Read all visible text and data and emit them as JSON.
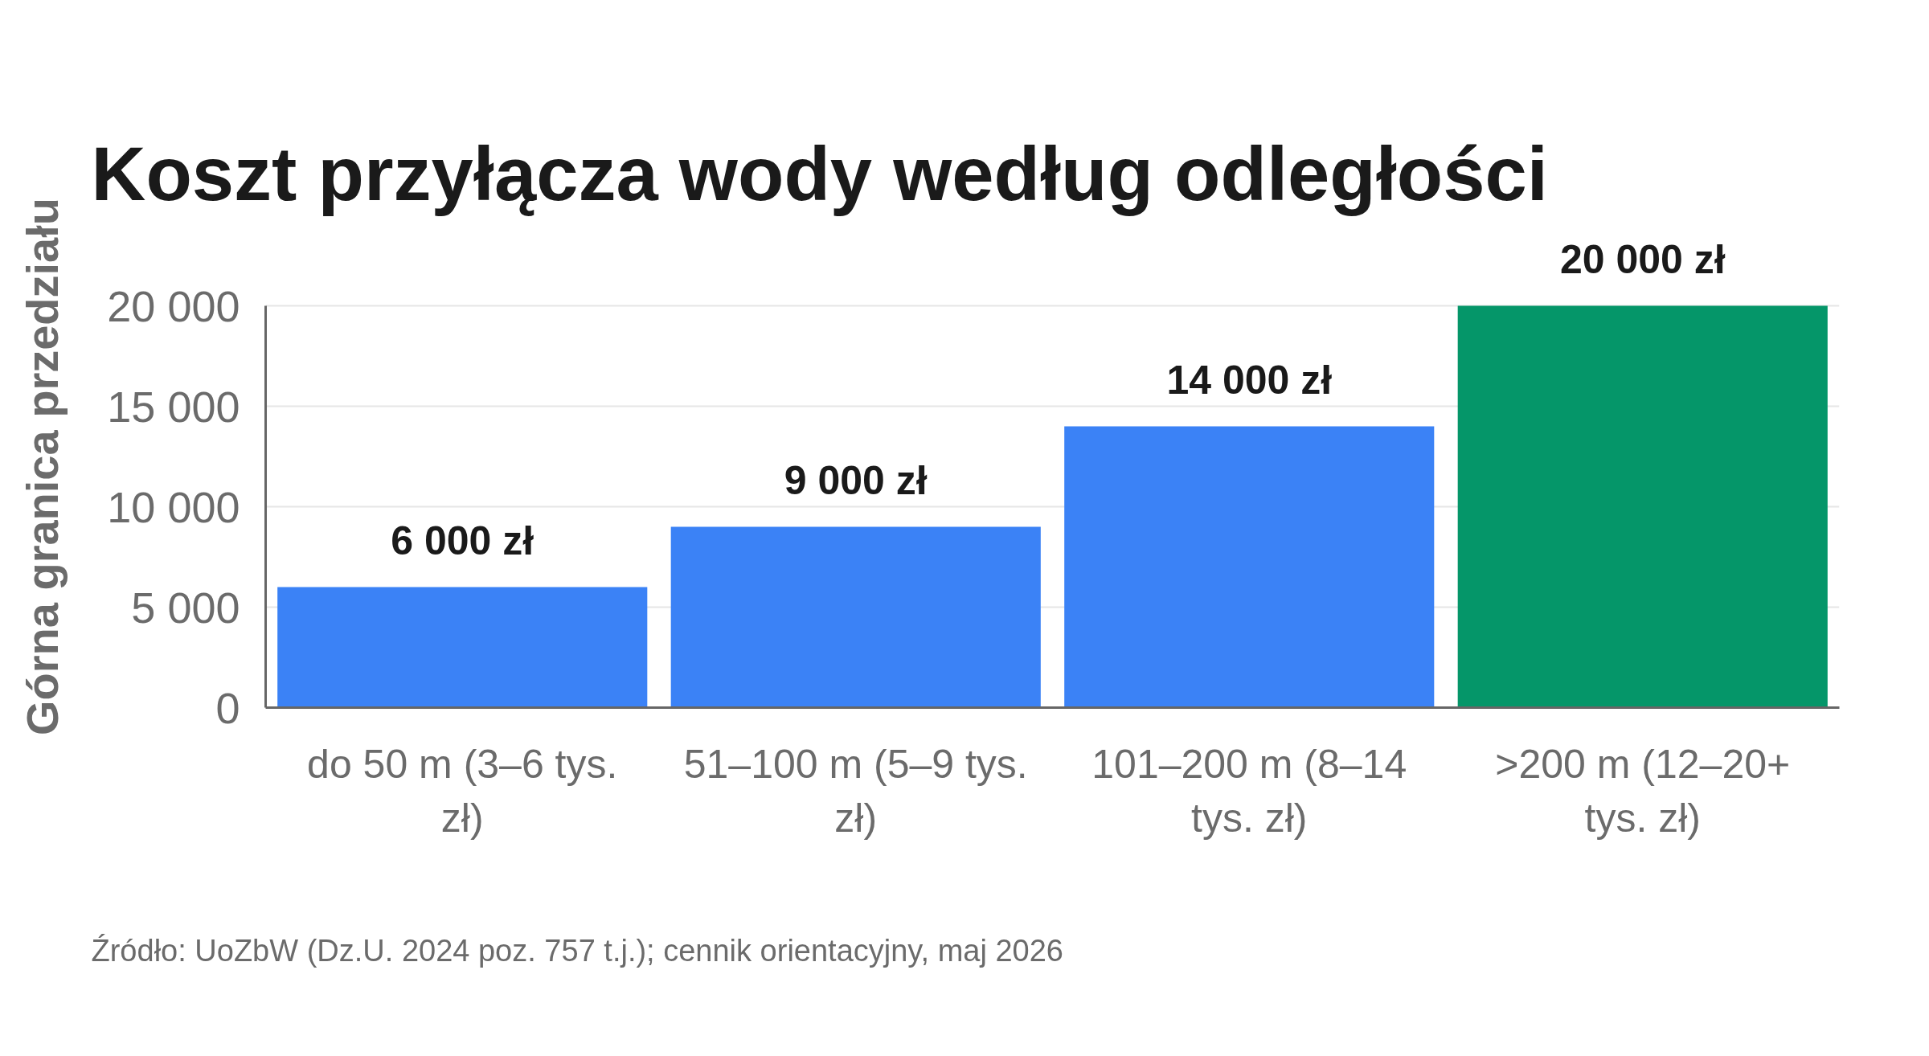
{
  "chart_data": {
    "type": "bar",
    "title": "Koszt przyłącza wody według odległości",
    "ylabel": "Górna granica przedziału",
    "categories": [
      "do 50 m (3–6 tys. zł)",
      "51–100 m (5–9 tys. zł)",
      "101–200 m (8–14 tys. zł)",
      ">200 m (12–20+ tys. zł)"
    ],
    "values": [
      6000,
      9000,
      14000,
      20000
    ],
    "colors": [
      "#3b82f6",
      "#3b82f6",
      "#3b82f6",
      "#059669"
    ],
    "value_labels": [
      "6 000 zł",
      "9 000 zł",
      "14 000 zł",
      "20 000 zł"
    ],
    "ylim": [
      0,
      20000
    ],
    "yticks": [
      0,
      {
        "value": 5000,
        "label": "5 000"
      },
      {
        "value": 10000,
        "label": "10 000"
      },
      {
        "value": 15000,
        "label": "15 000"
      },
      {
        "value": 20000,
        "label": "20 000"
      }
    ],
    "grid": "y",
    "annotations": [
      "Źródło: UoZbW (Dz.U. 2024 poz. 757 t.j.); cennik orientacyjny, maj 2026"
    ]
  }
}
